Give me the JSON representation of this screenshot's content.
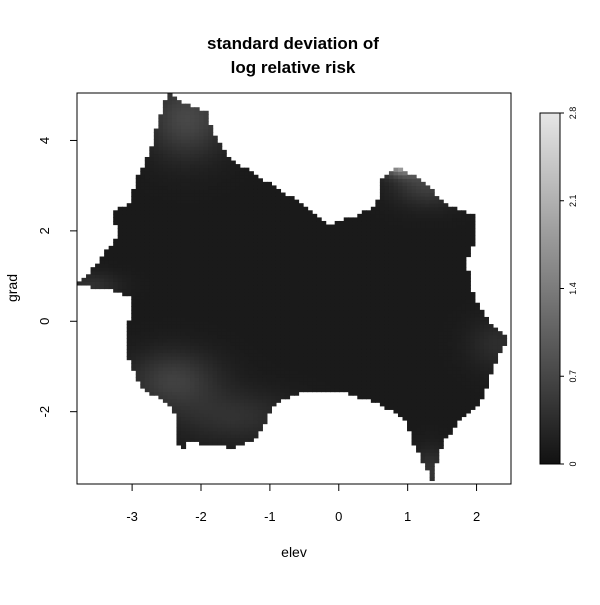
{
  "chart_data": {
    "type": "heatmap",
    "title_lines": [
      "standard deviation of",
      "log relative risk"
    ],
    "xlabel": "elev",
    "ylabel": "grad",
    "xlim": [
      -3.8,
      2.5
    ],
    "ylim": [
      -3.6,
      5.05
    ],
    "x_ticks": [
      -3,
      -2,
      -1,
      0,
      1,
      2
    ],
    "x_tick_labels": [
      "-3",
      "-2",
      "-1",
      "0",
      "1",
      "2"
    ],
    "y_ticks": [
      -2,
      0,
      2,
      4
    ],
    "y_tick_labels": [
      "-2",
      "0",
      "2",
      "4"
    ],
    "colorbar": {
      "min": 0,
      "max": 2.8,
      "ticks": [
        0,
        0.7,
        1.4,
        2.1,
        2.8
      ],
      "tick_labels": [
        "0",
        "0.7",
        "1.4",
        "2.1",
        "2.8"
      ],
      "color_low": "#111111",
      "color_high": "#e6e6e6"
    },
    "grid": false,
    "colorscale": "grayscale",
    "region_boundary": [
      [
        -2.5,
        5.05
      ],
      [
        -2.2,
        4.8
      ],
      [
        -1.9,
        4.6
      ],
      [
        -1.85,
        4.2
      ],
      [
        -1.6,
        3.6
      ],
      [
        -1.0,
        3.05
      ],
      [
        -0.7,
        2.75
      ],
      [
        -0.15,
        2.15
      ],
      [
        0.2,
        2.3
      ],
      [
        0.55,
        2.55
      ],
      [
        0.6,
        3.1
      ],
      [
        0.85,
        3.45
      ],
      [
        1.25,
        3.05
      ],
      [
        1.55,
        2.6
      ],
      [
        1.95,
        2.35
      ],
      [
        2.0,
        1.9
      ],
      [
        1.85,
        1.35
      ],
      [
        1.95,
        0.6
      ],
      [
        2.15,
        0.05
      ],
      [
        2.45,
        -0.35
      ],
      [
        2.25,
        -0.95
      ],
      [
        2.1,
        -1.7
      ],
      [
        1.75,
        -2.2
      ],
      [
        1.5,
        -2.7
      ],
      [
        1.35,
        -3.5
      ],
      [
        1.15,
        -2.9
      ],
      [
        1.05,
        -2.6
      ],
      [
        1.0,
        -2.2
      ],
      [
        0.75,
        -1.95
      ],
      [
        0.45,
        -1.75
      ],
      [
        0.05,
        -1.55
      ],
      [
        -0.55,
        -1.55
      ],
      [
        -0.95,
        -1.85
      ],
      [
        -1.2,
        -2.6
      ],
      [
        -1.55,
        -2.8
      ],
      [
        -2.2,
        -2.65
      ],
      [
        -2.3,
        -3.0
      ],
      [
        -2.35,
        -2.45
      ],
      [
        -2.4,
        -1.95
      ],
      [
        -2.9,
        -1.4
      ],
      [
        -3.1,
        -0.6
      ],
      [
        -3.0,
        0.5
      ],
      [
        -3.3,
        0.7
      ],
      [
        -3.8,
        0.8
      ],
      [
        -3.5,
        1.3
      ],
      [
        -3.2,
        1.9
      ],
      [
        -3.3,
        2.4
      ],
      [
        -3.05,
        2.6
      ],
      [
        -2.95,
        3.1
      ],
      [
        -2.75,
        3.7
      ],
      [
        -2.65,
        4.3
      ],
      [
        -2.55,
        4.75
      ]
    ],
    "sd_field": {
      "base": 0.12,
      "hotspots": [
        {
          "x": 0.95,
          "y": 3.55,
          "sx": 0.22,
          "sy": 0.18,
          "amp": 2.6
        },
        {
          "x": 1.3,
          "y": 3.1,
          "sx": 0.35,
          "sy": 0.35,
          "amp": 0.55
        },
        {
          "x": -2.2,
          "y": 4.5,
          "sx": 0.4,
          "sy": 0.6,
          "amp": 0.6
        },
        {
          "x": -2.4,
          "y": -1.3,
          "sx": 0.45,
          "sy": 0.45,
          "amp": 0.5
        },
        {
          "x": -1.5,
          "y": -2.1,
          "sx": 0.6,
          "sy": 0.4,
          "amp": 0.3
        },
        {
          "x": 2.3,
          "y": -0.5,
          "sx": 0.3,
          "sy": 0.4,
          "amp": 0.25
        },
        {
          "x": 1.35,
          "y": -3.3,
          "sx": 0.2,
          "sy": 0.35,
          "amp": 0.35
        },
        {
          "x": -3.6,
          "y": 0.8,
          "sx": 0.3,
          "sy": 0.2,
          "amp": 0.3
        }
      ]
    }
  }
}
